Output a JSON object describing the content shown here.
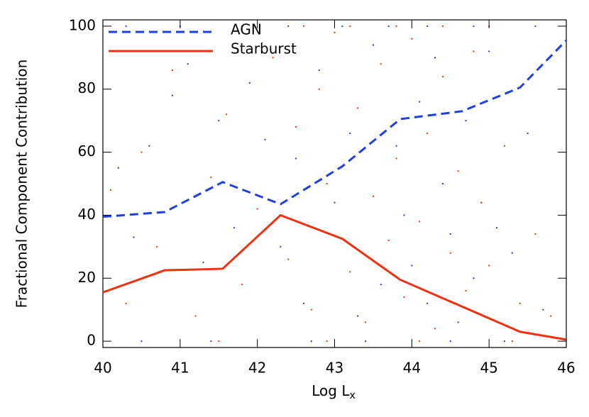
{
  "chart_data": {
    "type": "line",
    "xlabel": "Log L",
    "xlabel_sub": "x",
    "ylabel": "Fractional Component Contribution",
    "xlim": [
      40,
      46
    ],
    "ylim": [
      -2,
      102
    ],
    "xticks": [
      40,
      41,
      42,
      43,
      44,
      45,
      46
    ],
    "yticks": [
      0,
      20,
      40,
      60,
      80,
      100
    ],
    "legend": "upper left",
    "x": [
      40,
      40.8,
      41.55,
      42.3,
      43.1,
      43.85,
      44.65,
      45.4,
      46
    ],
    "series": [
      {
        "name": "AGN",
        "color": "#1f3fe0",
        "dash": true,
        "values": [
          39.5,
          41,
          50.5,
          43.5,
          55.5,
          70.5,
          73,
          80.5,
          95.5
        ]
      },
      {
        "name": "Starburst",
        "color": "#f03010",
        "dash": false,
        "values": [
          15.5,
          22.5,
          23,
          40,
          32.5,
          19.5,
          11,
          3,
          0.5
        ]
      },
      {
        "type": "scatter",
        "color": "#1f3fe0",
        "x": [
          40.2,
          40.4,
          40.6,
          40.9,
          41.1,
          41.3,
          41.5,
          41.7,
          41.9,
          42.1,
          42.3,
          42.5,
          42.6,
          42.8,
          43.0,
          43.2,
          43.3,
          43.5,
          43.6,
          43.8,
          43.9,
          44.0,
          44.1,
          44.2,
          44.3,
          44.4,
          44.5,
          44.6,
          44.7,
          44.8,
          44.9,
          45.0,
          45.1,
          45.3,
          45.5,
          45.7,
          40.3,
          41.0,
          41.8,
          42.4,
          43.1,
          43.7,
          44.2,
          44.8,
          45.6,
          40.5,
          41.4,
          42.7,
          43.4,
          44.5,
          45.2
        ],
        "values": [
          55,
          33,
          62,
          78,
          88,
          25,
          70,
          36,
          82,
          64,
          30,
          58,
          12,
          86,
          44,
          66,
          8,
          94,
          18,
          62,
          40,
          24,
          76,
          12,
          90,
          50,
          34,
          6,
          70,
          20,
          44,
          92,
          36,
          28,
          66,
          10,
          100,
          100,
          100,
          100,
          100,
          100,
          100,
          100,
          100,
          0,
          0,
          0,
          0,
          0,
          0
        ]
      },
      {
        "type": "scatter",
        "color": "#f03010",
        "x": [
          40.1,
          40.3,
          40.5,
          40.7,
          40.9,
          41.2,
          41.4,
          41.6,
          41.8,
          42.0,
          42.2,
          42.4,
          42.5,
          42.7,
          42.8,
          42.9,
          43.0,
          43.2,
          43.3,
          43.4,
          43.5,
          43.6,
          43.7,
          43.8,
          43.9,
          44.0,
          44.1,
          44.2,
          44.3,
          44.4,
          44.5,
          44.6,
          44.7,
          44.8,
          44.9,
          45.0,
          45.2,
          45.4,
          45.6,
          45.8,
          42.6,
          43.2,
          43.8,
          44.4,
          45.0,
          41.5,
          42.9,
          44.1,
          45.3
        ],
        "values": [
          48,
          12,
          60,
          30,
          86,
          8,
          52,
          72,
          18,
          42,
          90,
          26,
          68,
          10,
          80,
          50,
          98,
          22,
          74,
          6,
          46,
          88,
          32,
          58,
          14,
          96,
          38,
          66,
          4,
          84,
          28,
          54,
          16,
          92,
          44,
          24,
          62,
          12,
          34,
          8,
          100,
          100,
          100,
          100,
          100,
          0,
          0,
          0,
          0
        ]
      }
    ]
  }
}
